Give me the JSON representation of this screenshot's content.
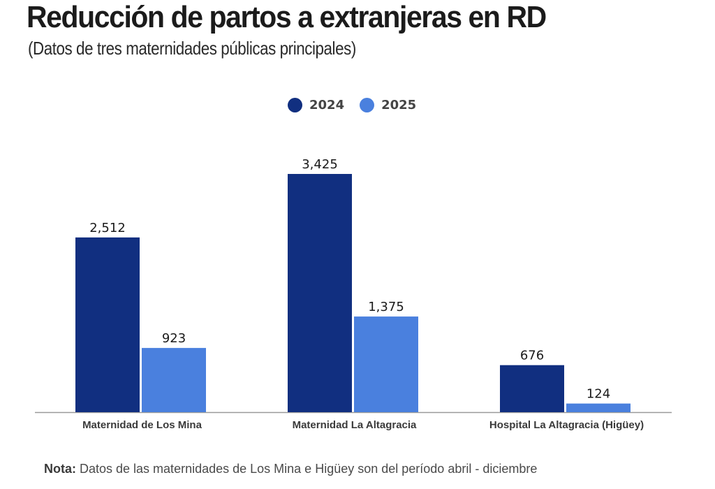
{
  "header": {
    "title": "Reducción de partos a extranjeras en RD",
    "subtitle": "(Datos de tres maternidades públicas principales)"
  },
  "legend": [
    {
      "label": "2024",
      "color": "#112f80"
    },
    {
      "label": "2025",
      "color": "#4a80de"
    }
  ],
  "chart_data": {
    "type": "bar",
    "title": "Reducción de partos a extranjeras en RD",
    "subtitle": "(Datos de tres maternidades públicas principales)",
    "categories": [
      "Maternidad de Los Mina",
      "Maternidad La Altagracia",
      "Hospital La Altagracia (Higüey)"
    ],
    "series": [
      {
        "name": "2024",
        "color": "#112f80",
        "values": [
          2512,
          3425,
          676
        ],
        "labels": [
          "2,512",
          "3,425",
          "676"
        ]
      },
      {
        "name": "2025",
        "color": "#4a80de",
        "values": [
          923,
          1375,
          124
        ],
        "labels": [
          "923",
          "1,375",
          "124"
        ]
      }
    ],
    "xlabel": "",
    "ylabel": "",
    "ylim": [
      0,
      3425
    ],
    "grid": false,
    "legend_position": "top-center"
  },
  "footer": {
    "note_label": "Nota:",
    "note_text": " Datos de las maternidades de Los Mina e Higüey son del período abril - diciembre"
  }
}
